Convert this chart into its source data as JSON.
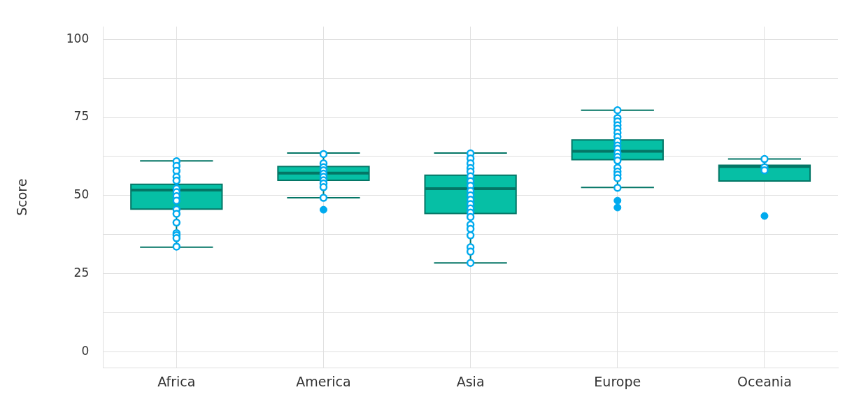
{
  "chart_data": {
    "type": "box",
    "ylabel": "Score",
    "categories": [
      "Africa",
      "America",
      "Asia",
      "Europe",
      "Oceania"
    ],
    "ylim": [
      -5,
      104
    ],
    "yticks": [
      0,
      {
        "value": 12.5,
        "label": null
      },
      25,
      {
        "value": 37.5,
        "label": null
      },
      50,
      {
        "value": 62.5,
        "label": null
      },
      75,
      {
        "value": 87.5,
        "label": null
      },
      100
    ],
    "grid": true,
    "legend": false,
    "series": [
      {
        "type": "box",
        "color": "#06bfa5",
        "boxes": [
          {
            "low": 33.5,
            "q1": 45.7,
            "median": 51.8,
            "q3": 53.6,
            "high": 61.1
          },
          {
            "low": 49.3,
            "q1": 54.9,
            "median": 57.2,
            "q3": 59.3,
            "high": 63.6,
            "outliers": [
              45.5
            ]
          },
          {
            "low": 28.5,
            "q1": 44.3,
            "median": 52.2,
            "q3": 56.5,
            "high": 63.6
          },
          {
            "low": 52.6,
            "q1": 61.5,
            "median": 64.2,
            "q3": 67.8,
            "high": 77.3,
            "outliers": [
              48.4,
              46.2
            ]
          },
          {
            "low": 54.7,
            "q1": 54.7,
            "median": 59.3,
            "q3": 59.7,
            "high": 61.7,
            "outliers": [
              43.5
            ]
          }
        ]
      },
      {
        "type": "scatter",
        "color": "#00aaee",
        "marker": "circle",
        "x": [
          "Africa",
          "Africa",
          "Africa",
          "Africa",
          "Africa",
          "Africa",
          "Africa",
          "Africa",
          "Africa",
          "Africa",
          "Africa",
          "Africa",
          "Africa",
          "Africa",
          "Africa",
          "Africa",
          "America",
          "America",
          "America",
          "America",
          "America",
          "America",
          "America",
          "America",
          "America",
          "America",
          "Asia",
          "Asia",
          "Asia",
          "Asia",
          "Asia",
          "Asia",
          "Asia",
          "Asia",
          "Asia",
          "Asia",
          "Asia",
          "Asia",
          "Asia",
          "Asia",
          "Asia",
          "Asia",
          "Asia",
          "Asia",
          "Asia",
          "Asia",
          "Asia",
          "Europe",
          "Europe",
          "Europe",
          "Europe",
          "Europe",
          "Europe",
          "Europe",
          "Europe",
          "Europe",
          "Europe",
          "Europe",
          "Europe",
          "Europe",
          "Europe",
          "Europe",
          "Europe",
          "Europe",
          "Europe",
          "Oceania",
          "Oceania",
          "Oceania"
        ],
        "values": [
          61.0,
          59.5,
          57.9,
          56.0,
          54.8,
          52.3,
          51.1,
          49.8,
          48.4,
          45.6,
          44.2,
          41.4,
          38.0,
          37.3,
          36.4,
          33.7,
          63.3,
          60.3,
          59.1,
          58.1,
          57.0,
          56.0,
          54.9,
          53.9,
          52.7,
          49.3,
          63.5,
          61.9,
          60.3,
          58.8,
          57.7,
          56.2,
          54.6,
          53.2,
          51.5,
          50.1,
          48.7,
          47.3,
          45.9,
          44.6,
          43.2,
          40.7,
          39.4,
          37.3,
          33.5,
          32.1,
          28.5,
          77.3,
          74.8,
          73.7,
          72.5,
          71.4,
          70.1,
          68.8,
          67.4,
          66.0,
          65.0,
          63.6,
          62.4,
          61.2,
          58.9,
          57.7,
          56.7,
          55.6,
          52.5,
          61.7,
          59.1,
          58.1
        ]
      }
    ]
  }
}
